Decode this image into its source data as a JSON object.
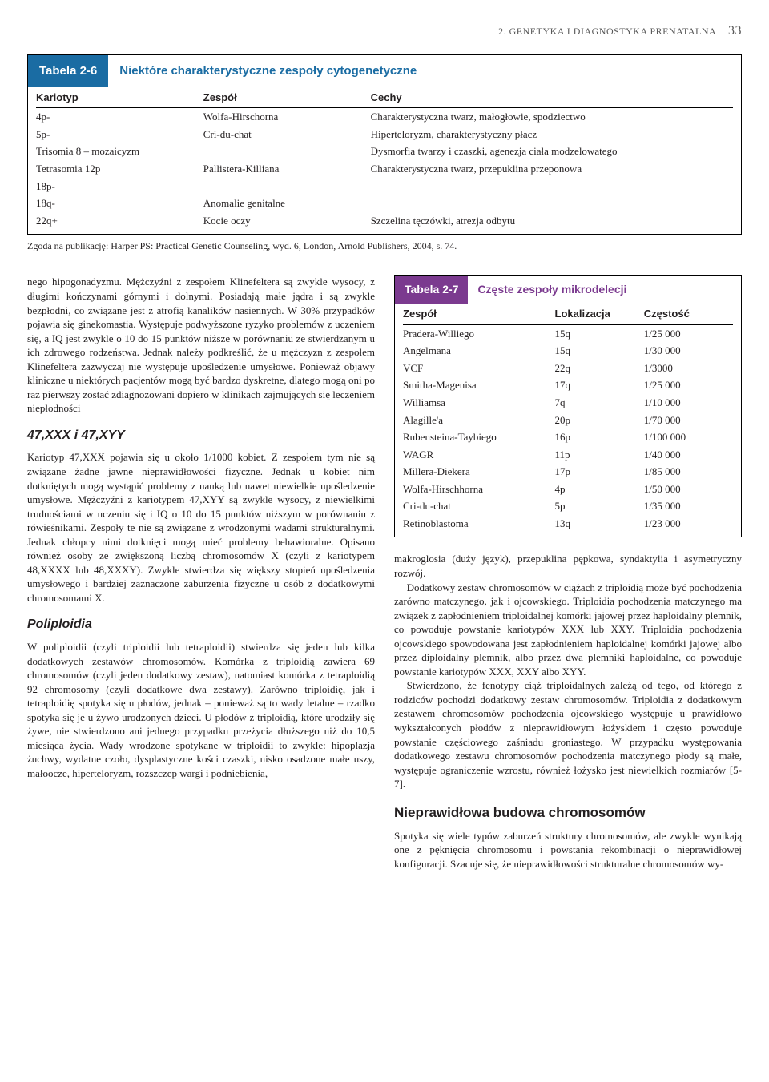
{
  "header": {
    "section_title": "2. GENETYKA I DIAGNOSTYKA PRENATALNA",
    "page_number": "33"
  },
  "table26": {
    "tab": "Tabela 2-6",
    "title": "Niektóre charakterystyczne zespoły cytogenetyczne",
    "columns": [
      "Kariotyp",
      "Zespół",
      "Cechy"
    ],
    "rows": [
      [
        "4p-",
        "Wolfa-Hirschorna",
        "Charakterystyczna twarz, małogłowie, spodziectwo"
      ],
      [
        "5p-",
        "Cri-du-chat",
        "Hiperteloryzm, charakterystyczny płacz"
      ],
      [
        "Trisomia 8 – mozaicyzm",
        "",
        "Dysmorfia twarzy i czaszki, agenezja ciała modzelowatego"
      ],
      [
        "Tetrasomia 12p",
        "Pallistera-Killiana",
        "Charakterystyczna twarz, przepuklina przeponowa"
      ],
      [
        "18p-",
        "",
        ""
      ],
      [
        "18q-",
        "Anomalie genitalne",
        ""
      ],
      [
        "22q+",
        "Kocie oczy",
        "Szczelina tęczówki, atrezja odbytu"
      ]
    ],
    "footnote": "Zgoda na publikację: Harper PS: Practical Genetic Counseling, wyd. 6, London, Arnold Publishers, 2004, s. 74.",
    "col_widths": [
      "24%",
      "24%",
      "52%"
    ]
  },
  "left_column": {
    "p1": "nego hipogonadyzmu. Mężczyźni z zespołem Klinefeltera są zwykle wysocy, z długimi kończynami górnymi i dolnymi. Posiadają małe jądra i są zwykle bezpłodni, co związane jest z atrofią kanalików nasiennych. W 30% przypadków pojawia się ginekomastia. Występuje podwyższone ryzyko problemów z uczeniem się, a IQ jest zwykle o 10 do 15 punktów niższe w porównaniu ze stwierdzanym u ich zdrowego rodzeństwa. Jednak należy podkreślić, że u mężczyzn z zespołem Klinefeltera zazwyczaj nie występuje upośledzenie umysłowe. Ponieważ objawy kliniczne u niektórych pacjentów mogą być bardzo dyskretne, dlatego mogą oni po raz pierwszy zostać zdiagnozowani dopiero w klinikach zajmujących się leczeniem niepłodności",
    "h1": "47,XXX i 47,XYY",
    "p2": "Kariotyp 47,XXX pojawia się u około 1/1000 kobiet. Z zespołem tym nie są związane żadne jawne nieprawidłowości fizyczne. Jednak u kobiet nim dotkniętych mogą wystąpić problemy z nauką lub nawet niewielkie upośledzenie umysłowe. Mężczyźni z kariotypem 47,XYY są zwykle wysocy, z niewielkimi trudnościami w uczeniu się i IQ o 10 do 15 punktów niższym w porównaniu z rówieśnikami. Zespoły te nie są związane z wrodzonymi wadami strukturalnymi. Jednak chłopcy nimi dotknięci mogą mieć problemy behawioralne. Opisano również osoby ze zwiększoną liczbą chromosomów X (czyli z kariotypem 48,XXXX lub 48,XXXY). Zwykle stwierdza się większy stopień upośledzenia umysłowego i bardziej zaznaczone zaburzenia fizyczne u osób z dodatkowymi chromosomami X.",
    "h2": "Poliploidia",
    "p3": "W poliploidii (czyli triploidii lub tetraploidii) stwierdza się jeden lub kilka dodatkowych zestawów chromosomów. Komórka z triploidią zawiera 69 chromosomów (czyli jeden dodatkowy zestaw), natomiast komórka z tetraploidią 92 chromosomy (czyli dodatkowe dwa zestawy). Zarówno triploidię, jak i tetraploidię spotyka się u płodów, jednak – ponieważ są to wady letalne – rzadko spotyka się je u żywo urodzonych dzieci. U płodów z triploidią, które urodziły się żywe, nie stwierdzono ani jednego przypadku przeżycia dłuższego niż do 10,5 miesiąca życia. Wady wrodzone spotykane w triploidii to zwykle: hipoplazja żuchwy, wydatne czoło, dysplastyczne kości czaszki, nisko osadzone małe uszy, małoocze, hiperteloryzm, rozszczep wargi i podniebienia,"
  },
  "table27": {
    "tab": "Tabela 2-7",
    "title": "Częste zespoły mikrodelecji",
    "columns": [
      "Zespół",
      "Lokalizacja",
      "Częstość"
    ],
    "rows": [
      [
        "Pradera-Williego",
        "15q",
        "1/25 000"
      ],
      [
        "Angelmana",
        "15q",
        "1/30 000"
      ],
      [
        "VCF",
        "22q",
        "1/3000"
      ],
      [
        "Smitha-Magenisa",
        "17q",
        "1/25 000"
      ],
      [
        "Williamsa",
        "7q",
        "1/10 000"
      ],
      [
        "Alagille'a",
        "20p",
        "1/70 000"
      ],
      [
        "Rubensteina-Taybiego",
        "16p",
        "1/100 000"
      ],
      [
        "WAGR",
        "11p",
        "1/40 000"
      ],
      [
        "Millera-Diekera",
        "17p",
        "1/85 000"
      ],
      [
        "Wolfa-Hirschhorna",
        "4p",
        "1/50 000"
      ],
      [
        "Cri-du-chat",
        "5p",
        "1/35 000"
      ],
      [
        "Retinoblastoma",
        "13q",
        "1/23 000"
      ]
    ],
    "col_widths": [
      "46%",
      "27%",
      "27%"
    ]
  },
  "right_column": {
    "p1": "makroglosia (duży język), przepuklina pępkowa, syndaktylia i asymetryczny rozwój.",
    "p2": "Dodatkowy zestaw chromosomów w ciążach z triploidią może być pochodzenia zarówno matczynego, jak i ojcowskiego. Triploidia pochodzenia matczynego ma związek z zapłodnieniem triploidalnej komórki jajowej przez haploidalny plemnik, co powoduje powstanie kariotypów XXX lub XXY. Triploidia pochodzenia ojcowskiego spowodowana jest zapłodnieniem haploidalnej komórki jajowej albo przez diploidalny plemnik, albo przez dwa plemniki haploidalne, co powoduje powstanie kariotypów XXX, XXY albo XYY.",
    "p3": "Stwierdzono, że fenotypy ciąż triploidalnych zależą od tego, od którego z rodziców pochodzi dodatkowy zestaw chromosomów. Triploidia z dodatkowym zestawem chromosomów pochodzenia ojcowskiego występuje u prawidłowo wykształconych płodów z nieprawidłowym łożyskiem i często powoduje powstanie częściowego zaśniadu groniastego. W przypadku występowania dodatkowego zestawu chromosomów pochodzenia matczynego płody są małe, występuje ograniczenie wzrostu, również łożysko jest niewielkich rozmiarów [5-7].",
    "h1": "Nieprawidłowa budowa chromosomów",
    "p4": "Spotyka się wiele typów zaburzeń struktury chromosomów, ale zwykle wynikają one z pęknięcia chromosomu i powstania rekombinacji o nieprawidłowej konfiguracji. Szacuje się, że nieprawidłowości strukturalne chromosomów wy-"
  },
  "style": {
    "accent_26": "#1a6ca3",
    "accent_27": "#7b3a8f"
  }
}
